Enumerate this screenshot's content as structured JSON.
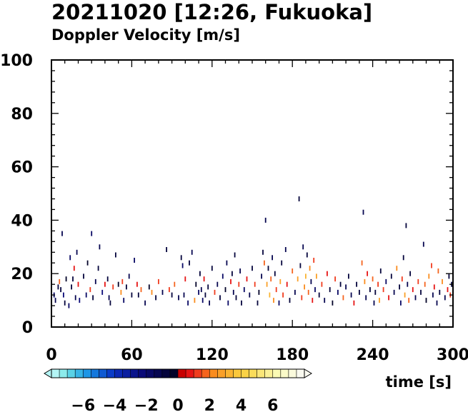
{
  "chart_data": {
    "type": "scatter",
    "title": "20211020 [12:26, Fukuoka]",
    "subtitle": "Doppler Velocity [m/s]",
    "xlabel": "time [s]",
    "ylabel": "",
    "xlim": [
      0,
      300
    ],
    "ylim": [
      0,
      100
    ],
    "x_ticks": [
      0,
      60,
      120,
      180,
      240,
      300
    ],
    "y_ticks": [
      0,
      20,
      40,
      60,
      80,
      100
    ],
    "grid": false,
    "colorbar": {
      "label": "Doppler Velocity [m/s]",
      "range": [
        -8,
        8
      ],
      "ticks": [
        -6,
        -4,
        -2,
        0,
        2,
        4,
        6
      ],
      "colors_negative": [
        "#b4f5f5",
        "#8cebeb",
        "#5ad2e6",
        "#37b4e6",
        "#1e96e6",
        "#1478dc",
        "#0f5ad2",
        "#0a3cc8",
        "#0a28b4",
        "#0a1ea0",
        "#0a148c",
        "#0a0a78",
        "#080864",
        "#060650",
        "#04043c",
        "#020228"
      ],
      "colors_positive": [
        "#c80000",
        "#e61414",
        "#f03c1e",
        "#f5641e",
        "#fa8c1e",
        "#faa028",
        "#fab432",
        "#fac83c",
        "#fad246",
        "#fadc5a",
        "#fae678",
        "#faf096",
        "#fafab4",
        "#fafac8",
        "#fafadc",
        "#fafaf0"
      ]
    },
    "points": [
      [
        2,
        12,
        -1.8
      ],
      [
        3,
        10,
        -1.2
      ],
      [
        5,
        15,
        -0.8
      ],
      [
        6,
        17,
        1.5
      ],
      [
        7,
        14,
        -0.6
      ],
      [
        8,
        35,
        -1.4
      ],
      [
        9,
        12,
        -2.2
      ],
      [
        10,
        9,
        -1.0
      ],
      [
        11,
        18,
        -0.4
      ],
      [
        13,
        8,
        -1.6
      ],
      [
        14,
        26,
        -2.0
      ],
      [
        15,
        15,
        -0.9
      ],
      [
        16,
        18,
        -0.7
      ],
      [
        17,
        22,
        0.8
      ],
      [
        18,
        11,
        -1.3
      ],
      [
        19,
        28,
        -1.1
      ],
      [
        20,
        16,
        0.5
      ],
      [
        21,
        10,
        -2.4
      ],
      [
        24,
        19,
        -0.9
      ],
      [
        26,
        12,
        -1.7
      ],
      [
        27,
        24,
        -0.5
      ],
      [
        29,
        14,
        1.2
      ],
      [
        30,
        35,
        -1.9
      ],
      [
        31,
        11,
        -0.8
      ],
      [
        33,
        17,
        -1.4
      ],
      [
        35,
        22,
        -0.6
      ],
      [
        36,
        30,
        -1.2
      ],
      [
        38,
        13,
        -2.1
      ],
      [
        40,
        16,
        0.9
      ],
      [
        42,
        18,
        -0.7
      ],
      [
        43,
        11,
        -1.5
      ],
      [
        44,
        9,
        -0.9
      ],
      [
        46,
        15,
        1.4
      ],
      [
        48,
        27,
        -1.0
      ],
      [
        50,
        16,
        -0.4
      ],
      [
        52,
        13,
        2.1
      ],
      [
        53,
        17,
        1.1
      ],
      [
        54,
        10,
        -1.8
      ],
      [
        56,
        15,
        -0.7
      ],
      [
        58,
        19,
        -1.1
      ],
      [
        60,
        12,
        -0.6
      ],
      [
        62,
        25,
        -1.6
      ],
      [
        64,
        16,
        0.7
      ],
      [
        65,
        12,
        -0.9
      ],
      [
        67,
        14,
        1.8
      ],
      [
        70,
        9,
        -1.3
      ],
      [
        73,
        15,
        -0.5
      ],
      [
        75,
        13,
        2.4
      ],
      [
        78,
        11,
        -0.8
      ],
      [
        80,
        17,
        1.3
      ],
      [
        83,
        13,
        -1.2
      ],
      [
        86,
        29,
        -0.9
      ],
      [
        88,
        14,
        1.0
      ],
      [
        90,
        12,
        -0.6
      ],
      [
        92,
        16,
        1.6
      ],
      [
        95,
        11,
        -1.4
      ],
      [
        97,
        26,
        -0.7
      ],
      [
        98,
        23,
        -1.9
      ],
      [
        99,
        12,
        -1.1
      ],
      [
        100,
        18,
        0.6
      ],
      [
        102,
        9,
        -1.6
      ],
      [
        103,
        24,
        -0.9
      ],
      [
        105,
        28,
        -1.2
      ],
      [
        107,
        10,
        2.2
      ],
      [
        108,
        16,
        -0.5
      ],
      [
        110,
        13,
        -1.7
      ],
      [
        111,
        20,
        -0.8
      ],
      [
        112,
        14,
        -1.3
      ],
      [
        113,
        10,
        -2.0
      ],
      [
        114,
        18,
        0.9
      ],
      [
        115,
        12,
        -1.0
      ],
      [
        117,
        15,
        -0.6
      ],
      [
        118,
        9,
        -1.4
      ],
      [
        120,
        22,
        -0.9
      ],
      [
        122,
        13,
        1.3
      ],
      [
        124,
        16,
        -1.1
      ],
      [
        126,
        11,
        -0.7
      ],
      [
        128,
        19,
        -1.8
      ],
      [
        130,
        14,
        -0.5
      ],
      [
        131,
        24,
        -1.2
      ],
      [
        132,
        9,
        -1.6
      ],
      [
        134,
        17,
        0.7
      ],
      [
        135,
        20,
        -0.9
      ],
      [
        136,
        13,
        -1.3
      ],
      [
        137,
        27,
        -0.6
      ],
      [
        138,
        11,
        -1.0
      ],
      [
        140,
        16,
        1.1
      ],
      [
        141,
        21,
        -1.5
      ],
      [
        142,
        9,
        -0.8
      ],
      [
        144,
        14,
        -1.9
      ],
      [
        146,
        18,
        0.6
      ],
      [
        148,
        12,
        -1.2
      ],
      [
        150,
        22,
        -0.7
      ],
      [
        152,
        16,
        1.4
      ],
      [
        154,
        9,
        -1.0
      ],
      [
        155,
        13,
        -0.5
      ],
      [
        157,
        19,
        -1.4
      ],
      [
        158,
        28,
        -0.9
      ],
      [
        159,
        24,
        1.8
      ],
      [
        160,
        40,
        -1.1
      ],
      [
        161,
        16,
        2.6
      ],
      [
        162,
        22,
        -0.8
      ],
      [
        163,
        12,
        3.1
      ],
      [
        164,
        18,
        1.5
      ],
      [
        165,
        26,
        -1.3
      ],
      [
        166,
        10,
        2.2
      ],
      [
        167,
        20,
        -0.6
      ],
      [
        168,
        14,
        1.2
      ],
      [
        170,
        9,
        -1.7
      ],
      [
        171,
        17,
        2.5
      ],
      [
        172,
        24,
        -0.9
      ],
      [
        173,
        12,
        1.0
      ],
      [
        175,
        29,
        -1.2
      ],
      [
        176,
        16,
        0.8
      ],
      [
        178,
        10,
        -0.7
      ],
      [
        180,
        21,
        1.6
      ],
      [
        182,
        13,
        -1.5
      ],
      [
        184,
        18,
        2.8
      ],
      [
        185,
        48,
        -1.0
      ],
      [
        186,
        23,
        -0.9
      ],
      [
        187,
        11,
        1.3
      ],
      [
        188,
        30,
        -1.4
      ],
      [
        189,
        15,
        2.0
      ],
      [
        190,
        19,
        3.3
      ],
      [
        191,
        27,
        -0.6
      ],
      [
        192,
        13,
        1.7
      ],
      [
        193,
        22,
        2.4
      ],
      [
        194,
        17,
        -1.1
      ],
      [
        195,
        10,
        0.9
      ],
      [
        196,
        25,
        1.2
      ],
      [
        197,
        14,
        -1.6
      ],
      [
        198,
        19,
        2.9
      ],
      [
        200,
        12,
        -0.8
      ],
      [
        202,
        16,
        1.4
      ],
      [
        204,
        10,
        -1.3
      ],
      [
        206,
        20,
        0.7
      ],
      [
        208,
        14,
        -1.0
      ],
      [
        210,
        9,
        -0.5
      ],
      [
        212,
        18,
        1.1
      ],
      [
        214,
        13,
        -1.8
      ],
      [
        216,
        16,
        -0.7
      ],
      [
        218,
        11,
        1.6
      ],
      [
        220,
        15,
        -1.2
      ],
      [
        222,
        19,
        -0.6
      ],
      [
        224,
        12,
        -1.4
      ],
      [
        226,
        9,
        0.8
      ],
      [
        228,
        16,
        -1.0
      ],
      [
        230,
        13,
        -0.9
      ],
      [
        232,
        24,
        1.5
      ],
      [
        233,
        43,
        -1.1
      ],
      [
        234,
        17,
        2.3
      ],
      [
        235,
        11,
        -1.5
      ],
      [
        236,
        20,
        0.6
      ],
      [
        238,
        14,
        -0.8
      ],
      [
        240,
        18,
        1.9
      ],
      [
        241,
        9,
        -1.2
      ],
      [
        242,
        13,
        -0.6
      ],
      [
        244,
        16,
        1.3
      ],
      [
        245,
        10,
        2.7
      ],
      [
        246,
        21,
        -1.0
      ],
      [
        248,
        14,
        1.1
      ],
      [
        250,
        17,
        -1.6
      ],
      [
        252,
        11,
        0.9
      ],
      [
        254,
        19,
        -0.7
      ],
      [
        256,
        13,
        -1.3
      ],
      [
        258,
        22,
        2.1
      ],
      [
        260,
        15,
        -0.9
      ],
      [
        261,
        9,
        -1.7
      ],
      [
        262,
        18,
        1.4
      ],
      [
        263,
        26,
        -0.6
      ],
      [
        264,
        12,
        2.5
      ],
      [
        265,
        38,
        -1.0
      ],
      [
        266,
        16,
        -1.2
      ],
      [
        267,
        10,
        1.7
      ],
      [
        268,
        20,
        -0.8
      ],
      [
        270,
        14,
        0.6
      ],
      [
        272,
        11,
        -1.4
      ],
      [
        274,
        17,
        1.2
      ],
      [
        276,
        13,
        -0.9
      ],
      [
        278,
        31,
        -1.1
      ],
      [
        279,
        16,
        1.8
      ],
      [
        280,
        10,
        -0.5
      ],
      [
        282,
        19,
        2.3
      ],
      [
        284,
        23,
        1.0
      ],
      [
        285,
        12,
        -1.5
      ],
      [
        286,
        15,
        0.8
      ],
      [
        288,
        9,
        -1.1
      ],
      [
        289,
        21,
        1.6
      ],
      [
        290,
        13,
        -0.7
      ],
      [
        292,
        17,
        2.0
      ],
      [
        294,
        11,
        -1.3
      ],
      [
        296,
        14,
        0.9
      ],
      [
        297,
        19,
        -0.8
      ],
      [
        298,
        12,
        1.4
      ],
      [
        299,
        16,
        -1.0
      ]
    ]
  }
}
